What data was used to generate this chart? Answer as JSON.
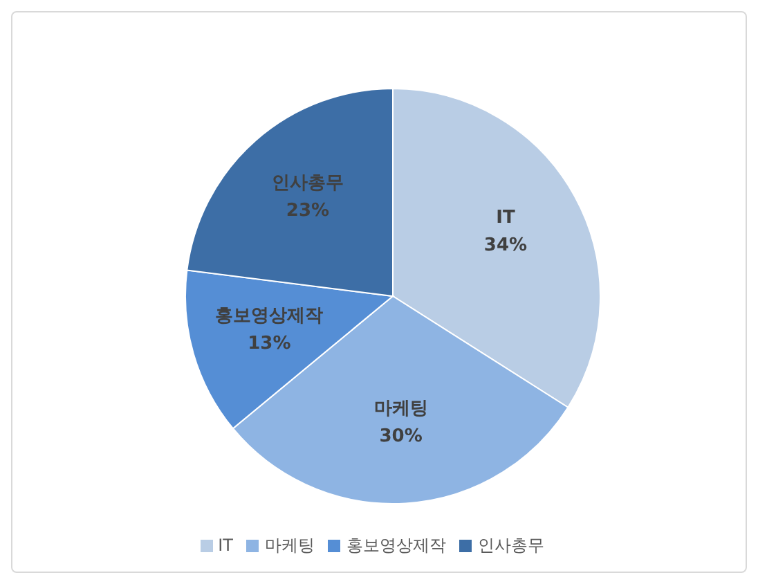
{
  "chart_data": {
    "type": "pie",
    "categories": [
      "IT",
      "마케팅",
      "홍보영상제작",
      "인사총무"
    ],
    "values": [
      34,
      30,
      13,
      23
    ],
    "value_labels": [
      "34%",
      "30%",
      "13%",
      "23%"
    ],
    "colors": [
      "#b9cde5",
      "#8eb4e3",
      "#558ed5",
      "#3d6ea6"
    ],
    "legend": "bottom"
  }
}
